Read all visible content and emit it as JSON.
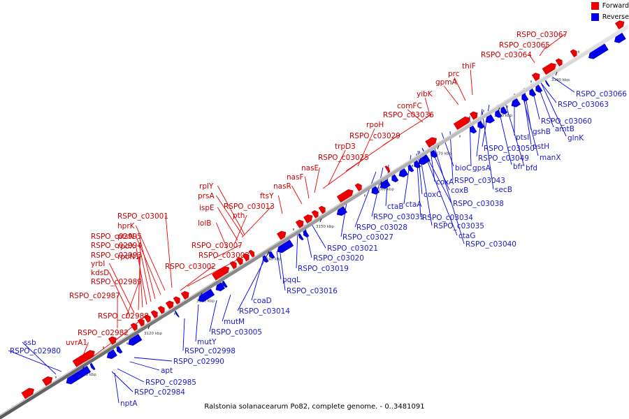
{
  "caption": "Ralstonia solanacearum Po82, complete genome. - 0..3481091",
  "legend": {
    "forward": {
      "label": "Forward",
      "color": "#ee0000"
    },
    "reverse": {
      "label": "Reverse",
      "color": "#0000ee"
    }
  },
  "ticks": [
    "3110 kbp",
    "3120 kbp",
    "3130 kbp",
    "3140 kbp",
    "3150 kbp",
    "3160 kbp",
    "3170 kbp",
    "3180 kbp",
    "3190 kbp"
  ],
  "forward_labels": [
    "RSPO_c03067",
    "RSPO_c03065",
    "RSPO_c03064",
    "thiF",
    "prc",
    "gpmA",
    "yibK",
    "comFC",
    "RSPO_c03036",
    "rpoH",
    "RSPO_c03029",
    "trpD3",
    "RSPO_c03025",
    "nasE",
    "nasF",
    "nasR",
    "ftsY",
    "rplY",
    "prsA",
    "RSPO_c03013",
    "ispE",
    "pth",
    "lolB",
    "RSPO_c03001",
    "hprK",
    "ptsN",
    "RSPO_c02995",
    "RSPO_c02994",
    "rpoX",
    "RSPO_c02993",
    "rpoN1",
    "RSPO_c03007",
    "RSPO_c03003",
    "yrbI",
    "RSPO_c03002",
    "kdsD",
    "RSPO_c02989",
    "RSPO_c02987",
    "RSPO_c02988",
    "RSPO_c02982",
    "uvrA1"
  ],
  "reverse_labels": [
    "ssb",
    "RSPO_c02980",
    "RSPO_c03066",
    "RSPO_c03063",
    "RSPO_c03060",
    "gshB",
    "amtB",
    "ptsI",
    "glnK",
    "pstH",
    "manX",
    "RSPO_c03050",
    "RSPO_c03049",
    "bfr",
    "bfd",
    "bioC",
    "gpsA",
    "RSPO_c03043",
    "secB",
    "coxA",
    "coxB",
    "coxC",
    "RSPO_c03038",
    "ctaB",
    "ctaA",
    "RSPO_c03031",
    "RSPO_c03034",
    "RSPO_c03035",
    "RSPO_c03028",
    "ctaG",
    "RSPO_c03027",
    "RSPO_c03040",
    "RSPO_c03021",
    "RSPO_c03020",
    "RSPO_c03019",
    "RSPO_c03016",
    "pqqL",
    "coaD",
    "RSPO_c03014",
    "mutM",
    "RSPO_c03005",
    "mutY",
    "RSPO_c02998",
    "RSPO_c02990",
    "apt",
    "RSPO_c02985",
    "RSPO_c02984",
    "nptA"
  ]
}
